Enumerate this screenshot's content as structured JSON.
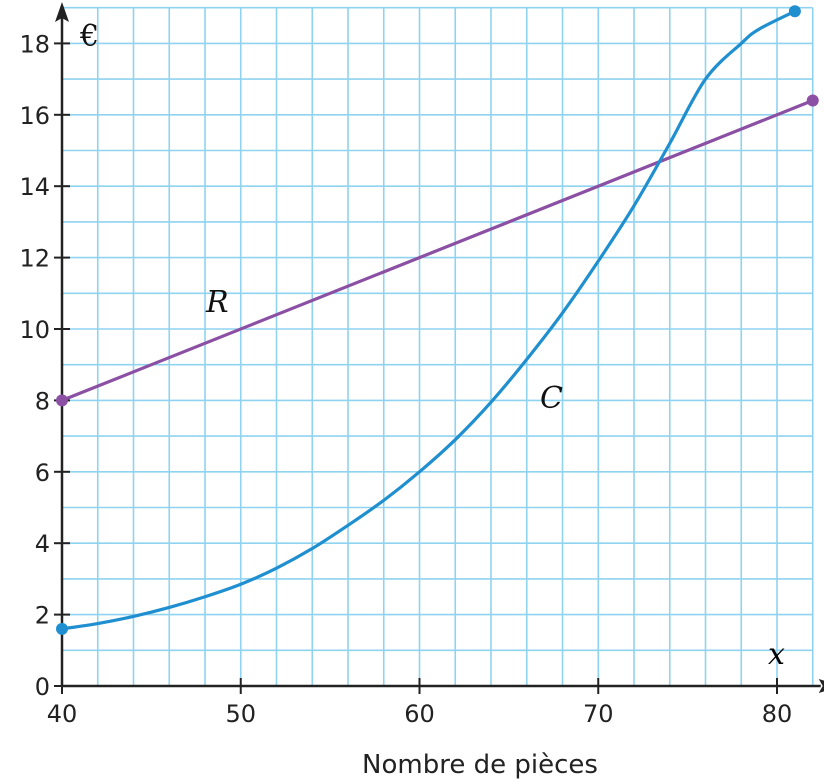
{
  "chart_data": {
    "type": "line",
    "y_unit_label": "€",
    "x_axis_symbol": "x",
    "xlabel": "Nombre de pièces",
    "xlim": [
      40,
      82
    ],
    "ylim": [
      0,
      19
    ],
    "x_ticks": [
      40,
      50,
      60,
      70,
      80
    ],
    "y_ticks": [
      0,
      2,
      4,
      6,
      8,
      10,
      12,
      14,
      16,
      18
    ],
    "grid": true,
    "colors": {
      "grid": "#8fd3f0",
      "axis": "#222222",
      "R": "#8b4fa3",
      "C": "#1f8fd0"
    },
    "series": [
      {
        "name": "R",
        "points": [
          [
            40,
            8
          ],
          [
            82,
            16.4
          ]
        ]
      },
      {
        "name": "C",
        "points": [
          [
            40,
            1.6
          ],
          [
            42,
            1.75
          ],
          [
            44,
            1.95
          ],
          [
            46,
            2.2
          ],
          [
            48,
            2.5
          ],
          [
            50,
            2.85
          ],
          [
            52,
            3.3
          ],
          [
            54,
            3.85
          ],
          [
            56,
            4.5
          ],
          [
            58,
            5.2
          ],
          [
            60,
            6.0
          ],
          [
            62,
            6.9
          ],
          [
            64,
            7.95
          ],
          [
            66,
            9.15
          ],
          [
            68,
            10.45
          ],
          [
            70,
            11.9
          ],
          [
            72,
            13.45
          ],
          [
            74,
            15.2
          ],
          [
            76,
            17.0
          ],
          [
            78,
            18.0
          ],
          [
            79,
            18.4
          ],
          [
            81,
            18.9
          ]
        ]
      }
    ]
  }
}
